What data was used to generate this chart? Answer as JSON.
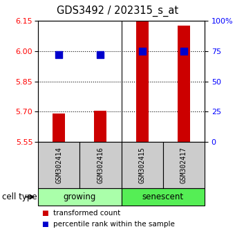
{
  "title": "GDS3492 / 202315_s_at",
  "samples": [
    "GSM302414",
    "GSM302416",
    "GSM302415",
    "GSM302417"
  ],
  "groups": [
    "growing",
    "growing",
    "senescent",
    "senescent"
  ],
  "transformed_counts": [
    5.69,
    5.705,
    6.145,
    6.125
  ],
  "percentile_ranks": [
    72,
    72,
    75,
    75
  ],
  "ylim_left": [
    5.55,
    6.15
  ],
  "yticks_left": [
    5.55,
    5.7,
    5.85,
    6.0,
    6.15
  ],
  "yticks_right": [
    0,
    25,
    50,
    75,
    100
  ],
  "ylim_right": [
    0,
    100
  ],
  "bar_color": "#CC0000",
  "dot_color": "#0000CC",
  "bar_width": 0.3,
  "dot_size": 45,
  "tick_fontsize": 8,
  "title_fontsize": 10.5,
  "sample_fontsize": 7,
  "group_fontsize": 8.5,
  "legend_fontsize": 7.5,
  "legend_red": "transformed count",
  "legend_blue": "percentile rank within the sample",
  "growing_color": "#AAFFAA",
  "senescent_color": "#55EE55",
  "sample_box_color": "#CCCCCC"
}
